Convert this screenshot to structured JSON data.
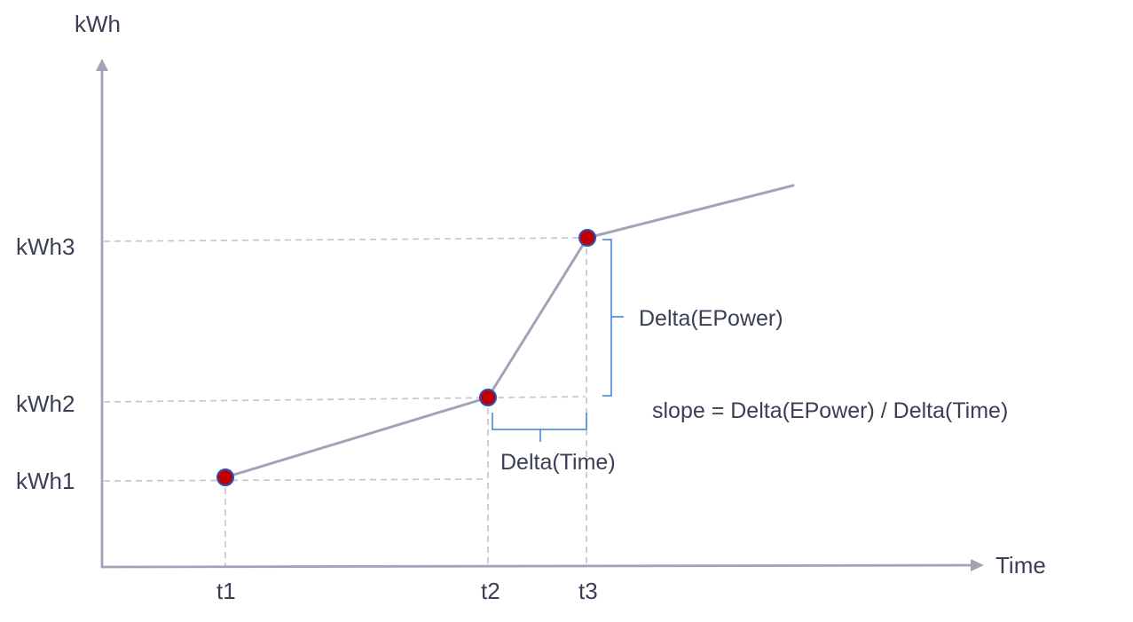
{
  "axes": {
    "y_title": "kWh",
    "x_title": "Time"
  },
  "y_ticks": [
    "kWh3",
    "kWh2",
    "kWh1"
  ],
  "x_ticks": [
    "t1",
    "t2",
    "t3"
  ],
  "annotations": {
    "delta_power": "Delta(EPower)",
    "delta_time": "Delta(Time)",
    "slope_formula": "slope = Delta(EPower) / Delta(Time)"
  },
  "colors": {
    "axis": "#a3a3b8",
    "curve": "#a3a3b8",
    "guide": "#c3c3d2",
    "point_fill": "#c00000",
    "point_stroke": "#2e4fb5",
    "brace": "#3d7fd6",
    "text": "#3b3f55"
  }
}
